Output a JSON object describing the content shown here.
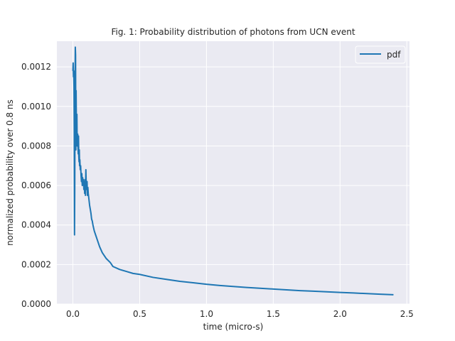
{
  "chart_data": {
    "type": "line",
    "title": "Fig. 1: Probability distribution of photons from UCN event",
    "xlabel": "time (micro-s)",
    "ylabel": "normalized probability over 0.8 ns",
    "xlim": [
      -0.12,
      2.52
    ],
    "ylim": [
      0.0,
      0.00133
    ],
    "xticks": [
      0.0,
      0.5,
      1.0,
      1.5,
      2.0,
      2.5
    ],
    "xtick_labels": [
      "0.0",
      "0.5",
      "1.0",
      "1.5",
      "2.0",
      "2.5"
    ],
    "yticks": [
      0.0,
      0.0002,
      0.0004,
      0.0006,
      0.0008,
      0.001,
      0.0012
    ],
    "ytick_labels": [
      "0.0000",
      "0.0002",
      "0.0004",
      "0.0006",
      "0.0008",
      "0.0010",
      "0.0012"
    ],
    "grid": true,
    "legend_position": "top-right",
    "background_color": "#eaeaf2",
    "grid_color": "#ffffff",
    "series": [
      {
        "name": "pdf",
        "color": "#1f77b4",
        "x": [
          0.0,
          0.002,
          0.004,
          0.006,
          0.008,
          0.01,
          0.012,
          0.014,
          0.016,
          0.018,
          0.02,
          0.022,
          0.024,
          0.026,
          0.028,
          0.03,
          0.032,
          0.034,
          0.036,
          0.038,
          0.04,
          0.042,
          0.044,
          0.046,
          0.048,
          0.05,
          0.052,
          0.055,
          0.058,
          0.061,
          0.064,
          0.067,
          0.07,
          0.073,
          0.076,
          0.079,
          0.082,
          0.085,
          0.088,
          0.091,
          0.094,
          0.097,
          0.1,
          0.103,
          0.106,
          0.109,
          0.112,
          0.115,
          0.12,
          0.125,
          0.13,
          0.135,
          0.14,
          0.145,
          0.15,
          0.16,
          0.17,
          0.18,
          0.2,
          0.22,
          0.25,
          0.28,
          0.3,
          0.35,
          0.4,
          0.45,
          0.5,
          0.6,
          0.7,
          0.8,
          0.9,
          1.0,
          1.1,
          1.2,
          1.3,
          1.4,
          1.5,
          1.6,
          1.7,
          1.8,
          1.9,
          2.0,
          2.1,
          2.2,
          2.3,
          2.4
        ],
        "y": [
          0.00118,
          0.00122,
          0.00115,
          0.00118,
          0.0011,
          0.00088,
          0.00035,
          0.0006,
          0.0011,
          0.0013,
          0.00126,
          0.00078,
          0.00108,
          0.00092,
          0.00085,
          0.00096,
          0.0008,
          0.00082,
          0.00086,
          0.00079,
          0.00076,
          0.00085,
          0.00075,
          0.00072,
          0.00078,
          0.0007,
          0.00073,
          0.00068,
          0.0007,
          0.00065,
          0.00062,
          0.00066,
          0.0006,
          0.00064,
          0.00062,
          0.00063,
          0.00058,
          0.00062,
          0.00056,
          0.00063,
          0.00055,
          0.00068,
          0.0006,
          0.00058,
          0.00062,
          0.00055,
          0.00059,
          0.00056,
          0.00053,
          0.0005,
          0.00048,
          0.00046,
          0.00043,
          0.00042,
          0.0004,
          0.00037,
          0.00035,
          0.00033,
          0.00029,
          0.00026,
          0.00023,
          0.00021,
          0.00019,
          0.000175,
          0.000165,
          0.000155,
          0.00015,
          0.000135,
          0.000125,
          0.000115,
          0.000108,
          0.0001,
          9.4e-05,
          8.9e-05,
          8.4e-05,
          8e-05,
          7.6e-05,
          7.2e-05,
          6.8e-05,
          6.5e-05,
          6.2e-05,
          5.9e-05,
          5.6e-05,
          5.3e-05,
          5e-05,
          4.7e-05
        ]
      }
    ]
  }
}
